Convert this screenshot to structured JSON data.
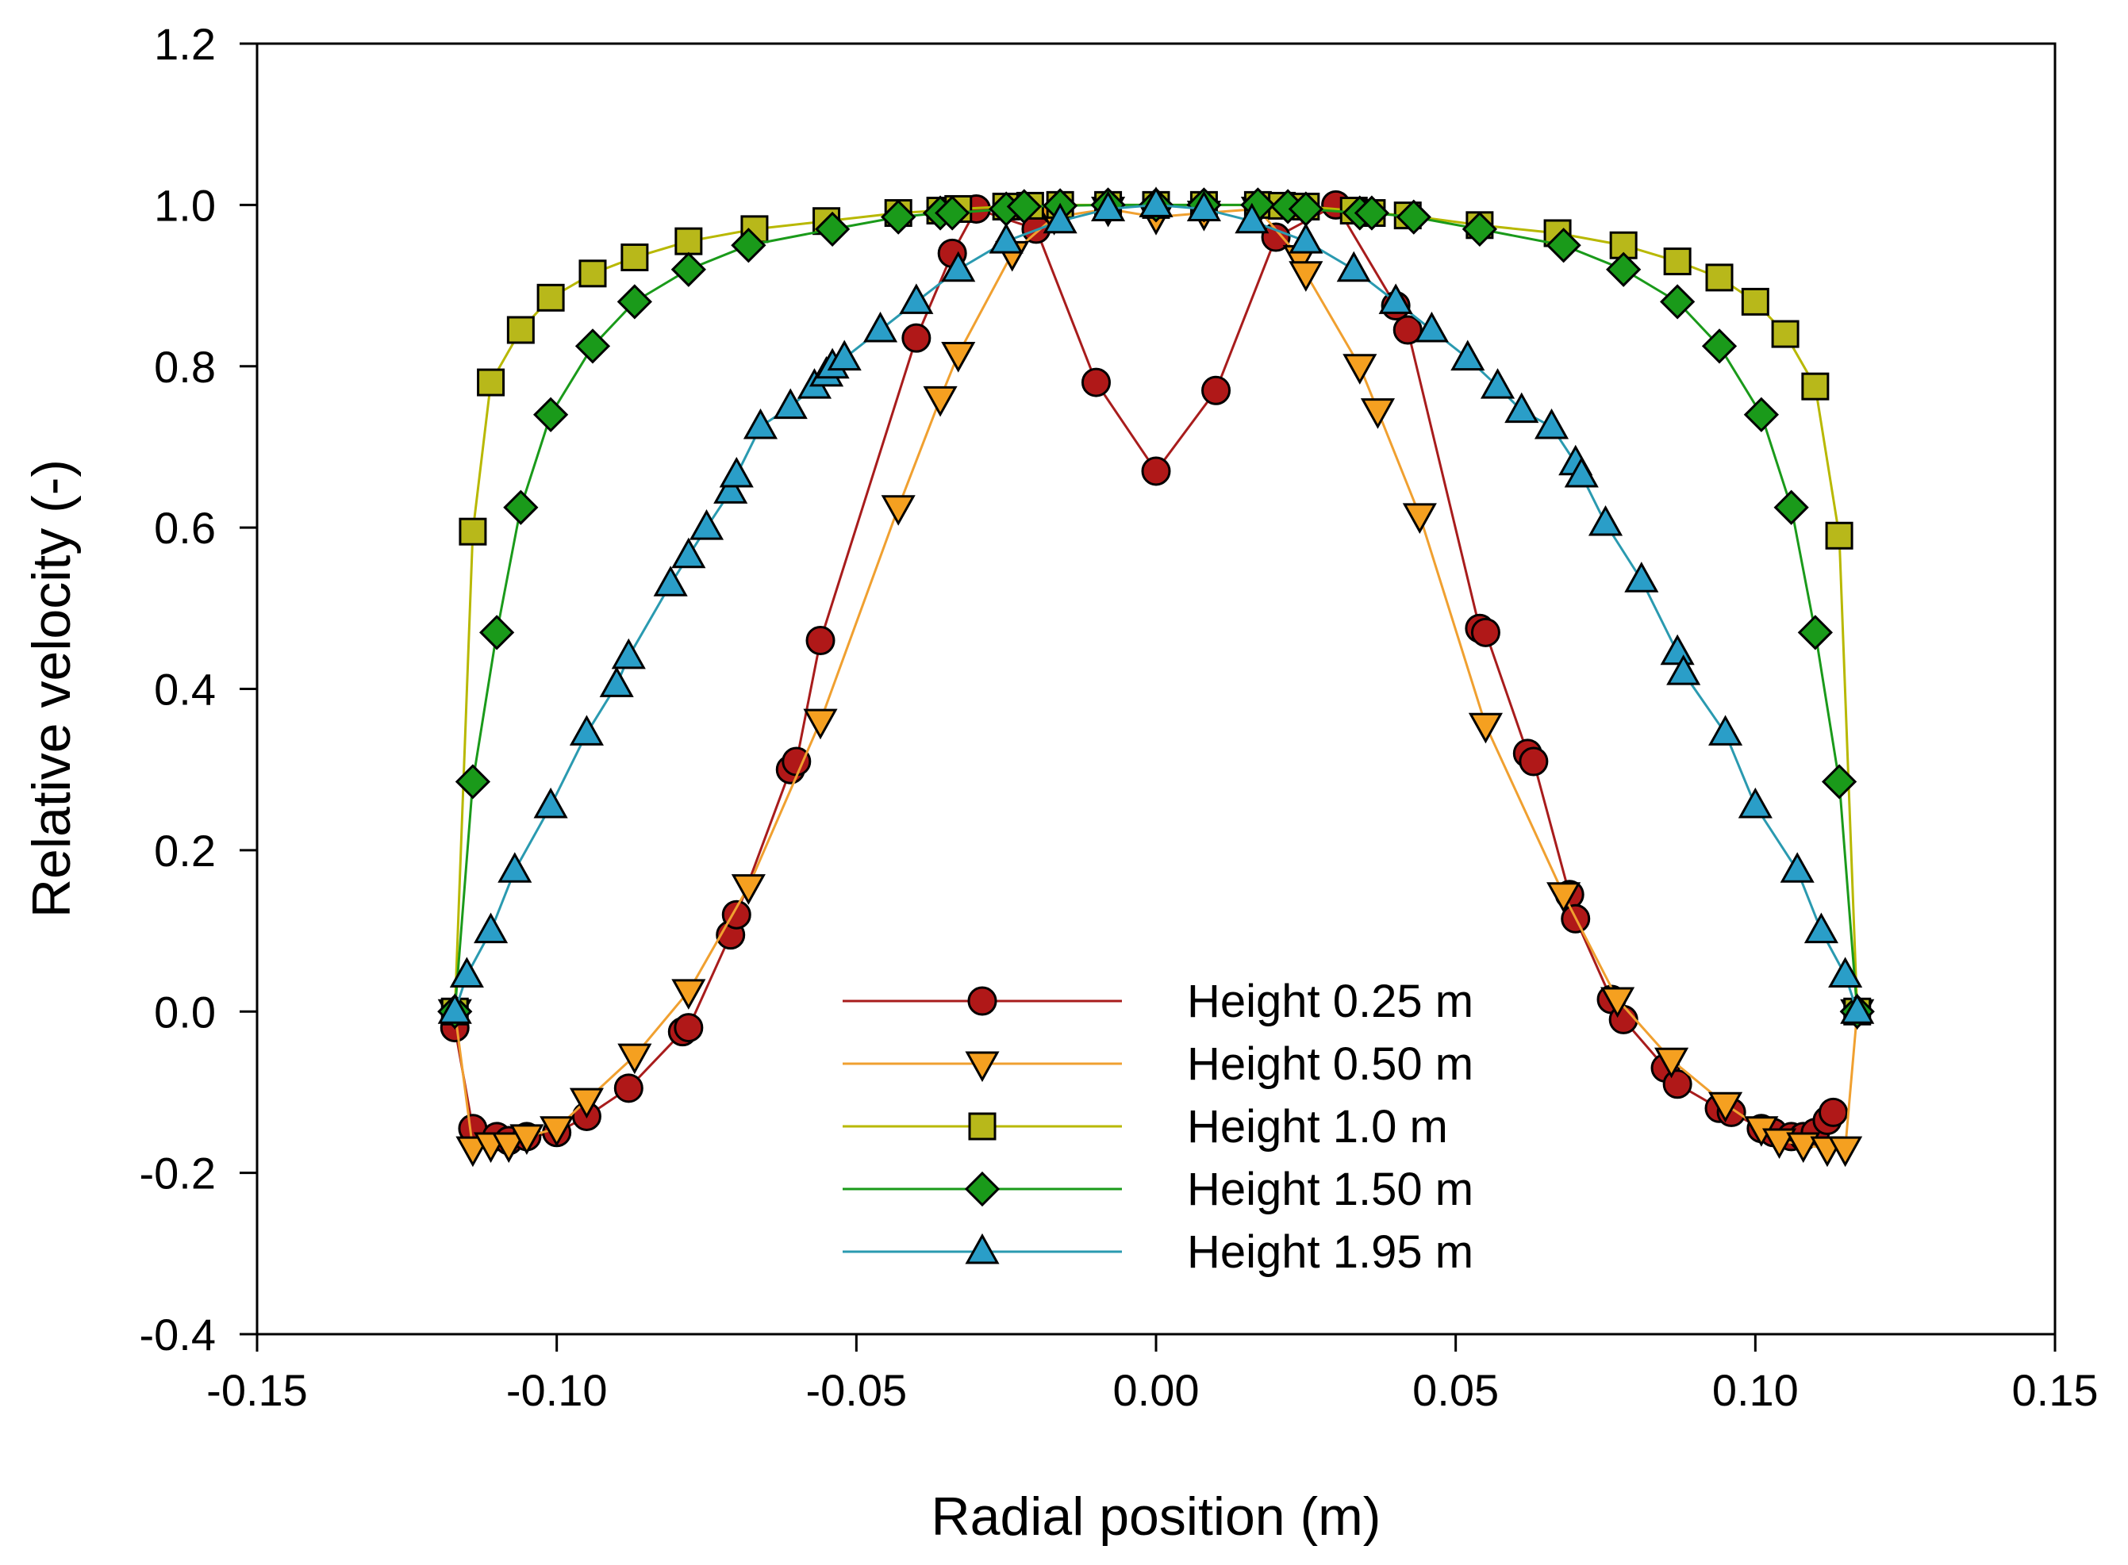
{
  "chart_data": {
    "type": "line",
    "title": "",
    "xlabel": "Radial position (m)",
    "ylabel": "Relative velocity (-)",
    "xlim": [
      -0.15,
      0.15
    ],
    "ylim": [
      -0.4,
      1.2
    ],
    "xticks": [
      -0.15,
      -0.1,
      -0.05,
      0.0,
      0.05,
      0.1,
      0.15
    ],
    "xtick_labels": [
      "-0.15",
      "-0.10",
      "-0.05",
      "0.00",
      "0.05",
      "0.10",
      "0.15"
    ],
    "yticks": [
      -0.4,
      -0.2,
      0.0,
      0.2,
      0.4,
      0.6,
      0.8,
      1.0,
      1.2
    ],
    "ytick_labels": [
      "-0.4",
      "-0.2",
      "0.0",
      "0.2",
      "0.4",
      "0.6",
      "0.8",
      "1.0",
      "1.2"
    ],
    "grid": false,
    "legend_position": "bottom-center",
    "series": [
      {
        "name": "Height 0.25 m",
        "marker": "circle",
        "color": "#a81c1c",
        "fill": "#b01818",
        "x": [
          -0.117,
          -0.114,
          -0.11,
          -0.108,
          -0.105,
          -0.1,
          -0.095,
          -0.088,
          -0.079,
          -0.078,
          -0.071,
          -0.07,
          -0.061,
          -0.06,
          -0.056,
          -0.04,
          -0.034,
          -0.03,
          -0.02,
          -0.01,
          0.0,
          0.01,
          0.02,
          0.03,
          0.04,
          0.042,
          0.054,
          0.055,
          0.062,
          0.063,
          0.069,
          0.07,
          0.076,
          0.078,
          0.085,
          0.087,
          0.094,
          0.096,
          0.101,
          0.103,
          0.106,
          0.108,
          0.11,
          0.112,
          0.113
        ],
        "y": [
          -0.02,
          -0.145,
          -0.155,
          -0.16,
          -0.155,
          -0.15,
          -0.13,
          -0.095,
          -0.025,
          -0.02,
          0.095,
          0.12,
          0.3,
          0.31,
          0.46,
          0.835,
          0.94,
          0.995,
          0.97,
          0.78,
          0.67,
          0.77,
          0.96,
          1.0,
          0.875,
          0.845,
          0.475,
          0.47,
          0.32,
          0.31,
          0.145,
          0.115,
          0.015,
          -0.01,
          -0.07,
          -0.09,
          -0.12,
          -0.125,
          -0.145,
          -0.15,
          -0.155,
          -0.155,
          -0.15,
          -0.135,
          -0.125
        ]
      },
      {
        "name": "Height 0.50 m",
        "marker": "triangle-down",
        "color": "#f0a030",
        "fill": "#f5a020",
        "x": [
          -0.117,
          -0.114,
          -0.111,
          -0.108,
          -0.105,
          -0.1,
          -0.095,
          -0.087,
          -0.078,
          -0.068,
          -0.056,
          -0.043,
          -0.036,
          -0.033,
          -0.024,
          -0.017,
          -0.008,
          0.0,
          0.008,
          0.017,
          0.024,
          0.025,
          0.034,
          0.037,
          0.044,
          0.055,
          0.068,
          0.077,
          0.086,
          0.095,
          0.101,
          0.104,
          0.108,
          0.112,
          0.115,
          0.117
        ],
        "y": [
          0.0,
          -0.17,
          -0.165,
          -0.165,
          -0.155,
          -0.145,
          -0.11,
          -0.055,
          0.025,
          0.155,
          0.36,
          0.625,
          0.76,
          0.815,
          0.94,
          0.985,
          0.995,
          0.985,
          0.99,
          0.995,
          0.935,
          0.915,
          0.8,
          0.745,
          0.615,
          0.355,
          0.145,
          0.015,
          -0.06,
          -0.115,
          -0.145,
          -0.16,
          -0.165,
          -0.17,
          -0.17,
          0.0
        ]
      },
      {
        "name": "Height 1.0 m",
        "marker": "square",
        "color": "#b8b800",
        "fill": "#b8b81a",
        "x": [
          -0.117,
          -0.114,
          -0.111,
          -0.106,
          -0.101,
          -0.094,
          -0.087,
          -0.078,
          -0.067,
          -0.055,
          -0.043,
          -0.036,
          -0.033,
          -0.025,
          -0.021,
          -0.016,
          -0.008,
          0.0,
          0.008,
          0.017,
          0.021,
          0.025,
          0.033,
          0.036,
          0.042,
          0.054,
          0.067,
          0.078,
          0.087,
          0.094,
          0.1,
          0.105,
          0.11,
          0.114,
          0.117
        ],
        "y": [
          0.0,
          0.595,
          0.78,
          0.845,
          0.885,
          0.915,
          0.935,
          0.955,
          0.97,
          0.98,
          0.99,
          0.993,
          0.995,
          0.998,
          0.999,
          1.0,
          1.0,
          1.0,
          1.0,
          1.0,
          0.999,
          0.998,
          0.993,
          0.99,
          0.987,
          0.975,
          0.965,
          0.95,
          0.93,
          0.91,
          0.88,
          0.84,
          0.775,
          0.59,
          0.0
        ]
      },
      {
        "name": "Height 1.50 m",
        "marker": "diamond",
        "color": "#1a9a1a",
        "fill": "#1a9a1a",
        "x": [
          -0.117,
          -0.114,
          -0.11,
          -0.106,
          -0.101,
          -0.094,
          -0.087,
          -0.078,
          -0.068,
          -0.054,
          -0.043,
          -0.036,
          -0.034,
          -0.025,
          -0.022,
          -0.016,
          -0.008,
          0.0,
          0.008,
          0.017,
          0.022,
          0.025,
          0.034,
          0.036,
          0.043,
          0.054,
          0.068,
          0.078,
          0.087,
          0.094,
          0.101,
          0.106,
          0.11,
          0.114,
          0.117
        ],
        "y": [
          0.0,
          0.285,
          0.47,
          0.625,
          0.74,
          0.825,
          0.88,
          0.92,
          0.95,
          0.97,
          0.985,
          0.99,
          0.99,
          0.995,
          0.998,
          0.999,
          1.0,
          1.0,
          1.0,
          1.0,
          0.998,
          0.995,
          0.99,
          0.99,
          0.985,
          0.97,
          0.95,
          0.92,
          0.88,
          0.825,
          0.74,
          0.625,
          0.47,
          0.285,
          0.0
        ]
      },
      {
        "name": "Height 1.95 m",
        "marker": "triangle-up",
        "color": "#2a9ab0",
        "fill": "#2a9ec8",
        "x": [
          -0.117,
          -0.115,
          -0.111,
          -0.107,
          -0.101,
          -0.095,
          -0.09,
          -0.088,
          -0.081,
          -0.078,
          -0.075,
          -0.071,
          -0.07,
          -0.066,
          -0.061,
          -0.057,
          -0.055,
          -0.054,
          -0.052,
          -0.046,
          -0.04,
          -0.033,
          -0.025,
          -0.016,
          -0.008,
          0.0,
          0.008,
          0.016,
          0.025,
          0.033,
          0.04,
          0.046,
          0.052,
          0.057,
          0.061,
          0.066,
          0.07,
          0.071,
          0.075,
          0.081,
          0.087,
          0.088,
          0.095,
          0.1,
          0.107,
          0.111,
          0.115,
          0.117
        ],
        "y": [
          0.0,
          0.045,
          0.1,
          0.175,
          0.255,
          0.345,
          0.405,
          0.44,
          0.53,
          0.565,
          0.6,
          0.645,
          0.665,
          0.725,
          0.75,
          0.775,
          0.79,
          0.8,
          0.81,
          0.845,
          0.88,
          0.92,
          0.955,
          0.98,
          0.995,
          1.0,
          0.995,
          0.98,
          0.955,
          0.92,
          0.88,
          0.845,
          0.81,
          0.775,
          0.745,
          0.725,
          0.68,
          0.665,
          0.605,
          0.535,
          0.445,
          0.42,
          0.345,
          0.255,
          0.175,
          0.1,
          0.045,
          0.0
        ]
      }
    ]
  }
}
